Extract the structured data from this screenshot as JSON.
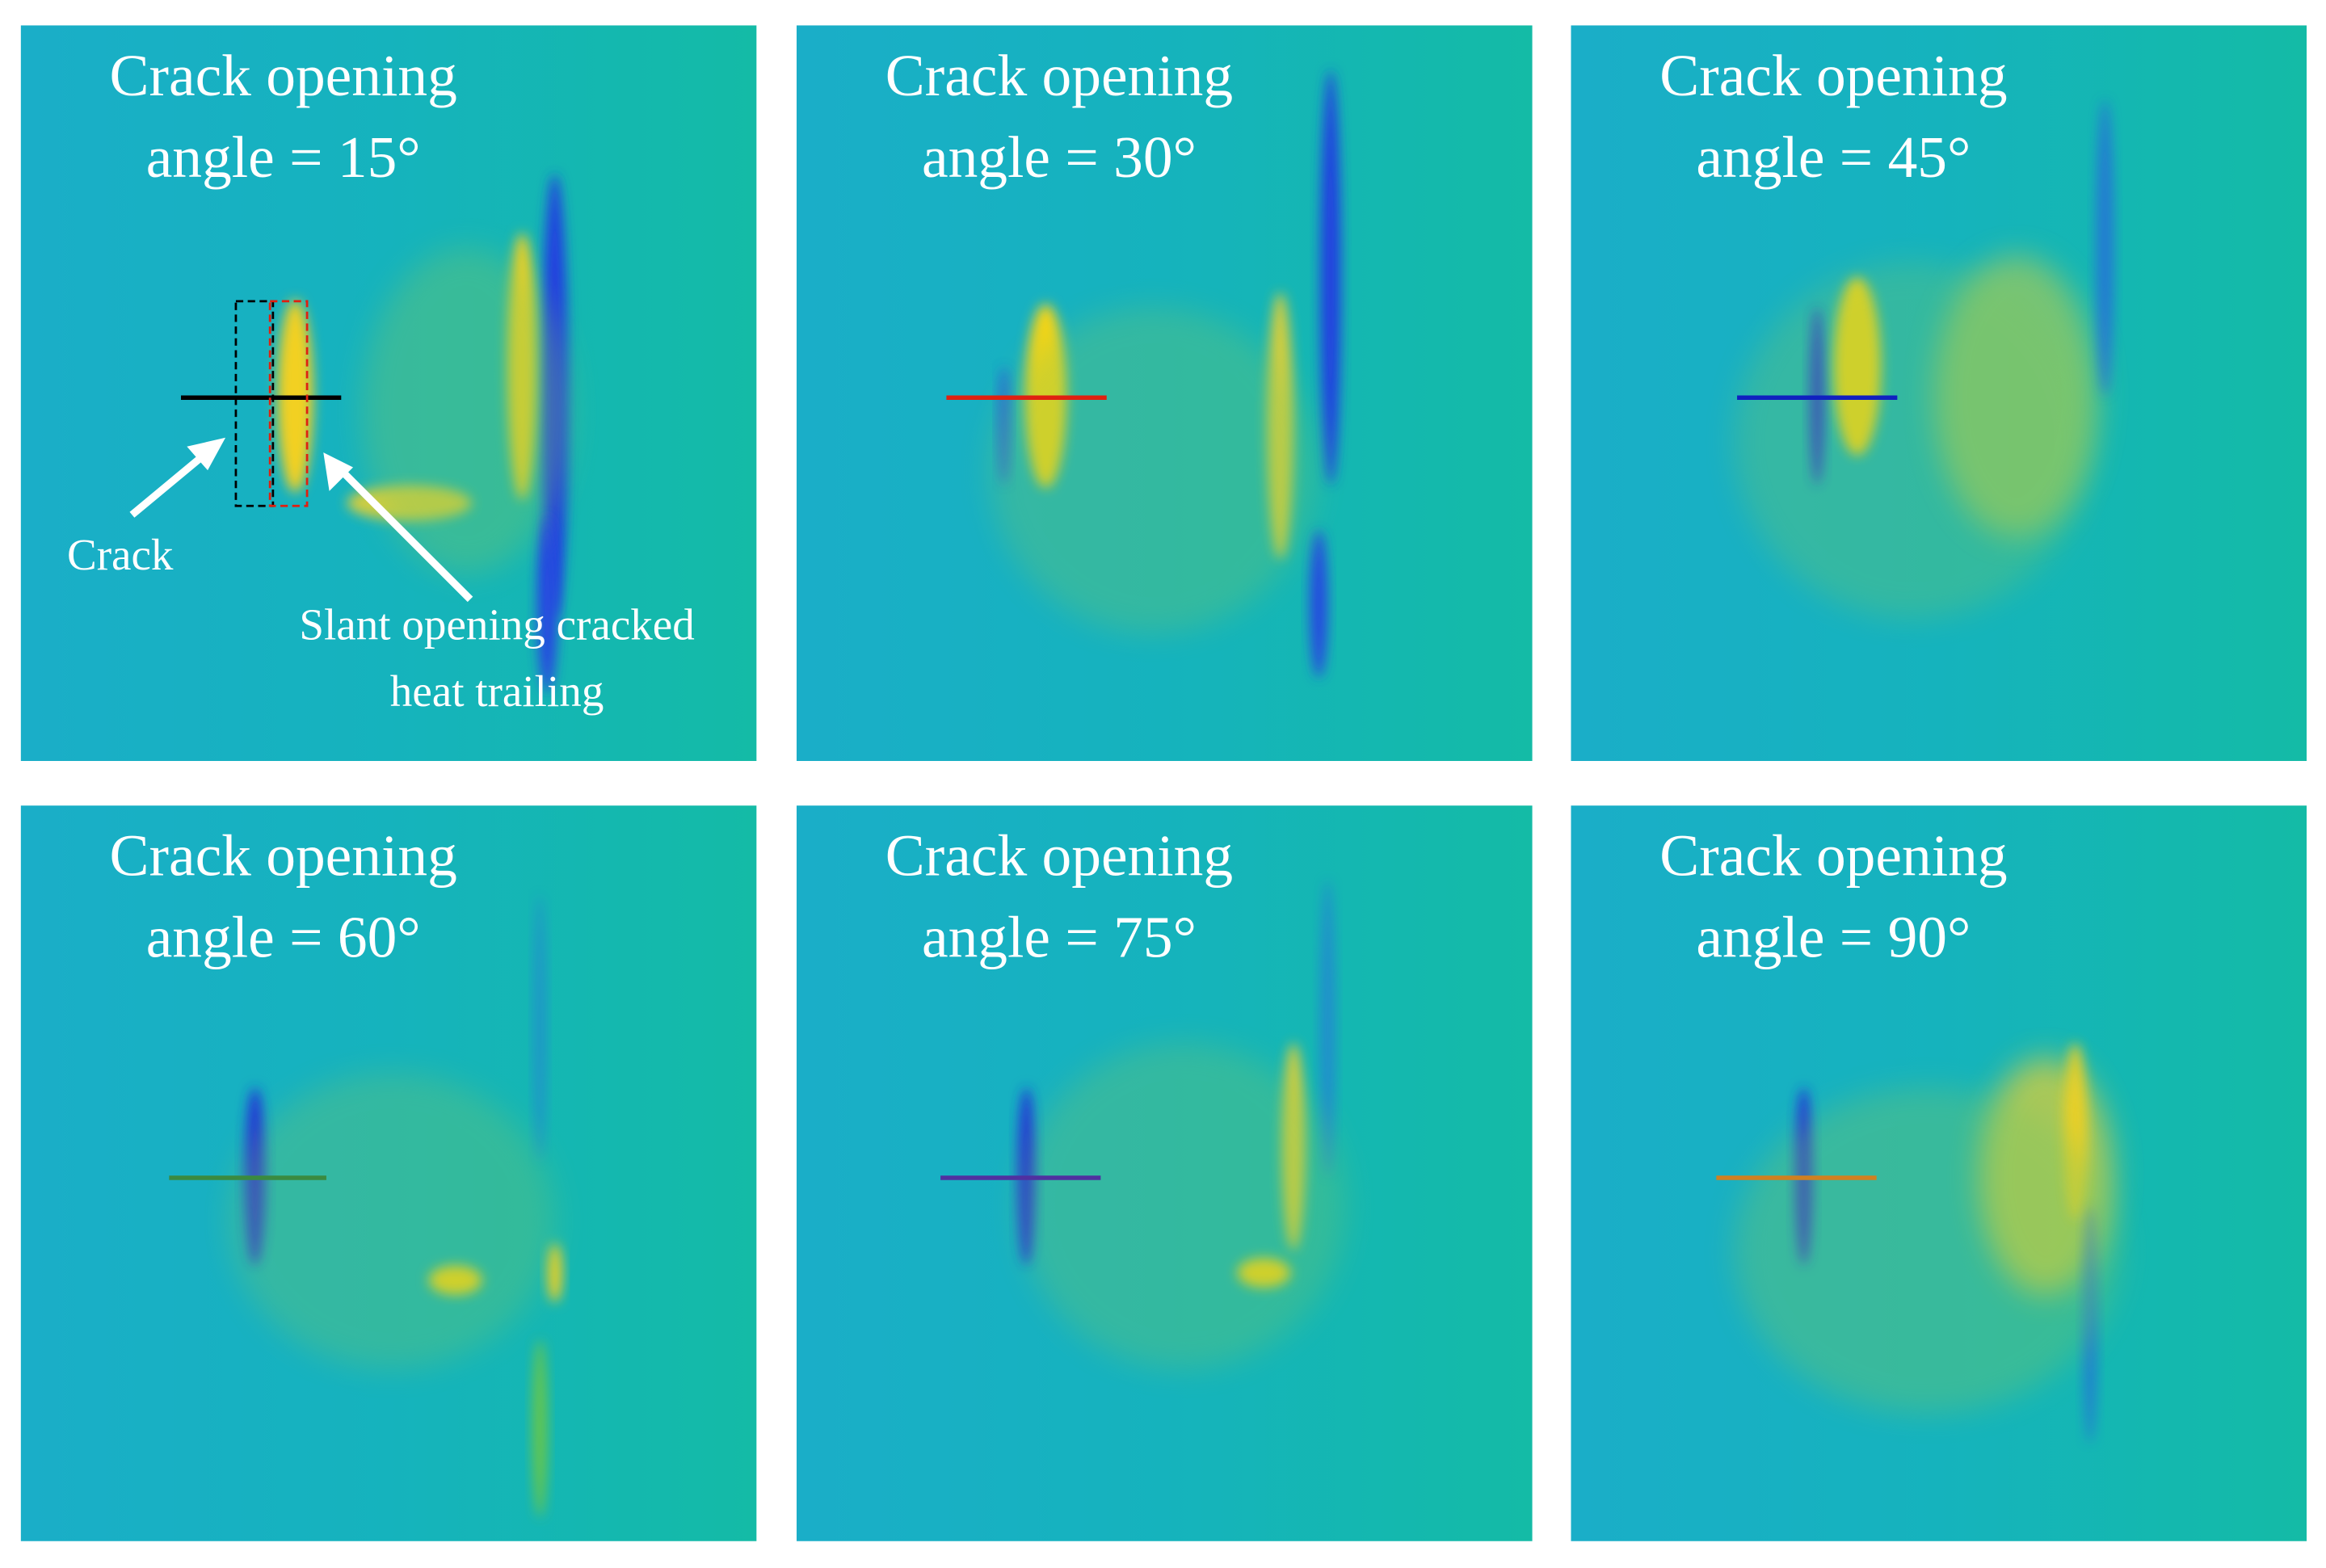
{
  "panels": [
    {
      "title": [
        "Crack opening",
        "angle = 15°"
      ]
    },
    {
      "title": [
        "Crack opening",
        "angle = 30°"
      ]
    },
    {
      "title": [
        "Crack opening",
        "angle = 45°"
      ]
    },
    {
      "title": [
        "Crack opening",
        "angle = 60°"
      ]
    },
    {
      "title": [
        "Crack opening",
        "angle = 75°"
      ]
    },
    {
      "title": [
        "Crack opening",
        "angle = 90°"
      ]
    }
  ],
  "annotations": {
    "crack": "Crack",
    "heat_trailing": [
      "Slant opening cracked",
      "heat trailing"
    ]
  }
}
